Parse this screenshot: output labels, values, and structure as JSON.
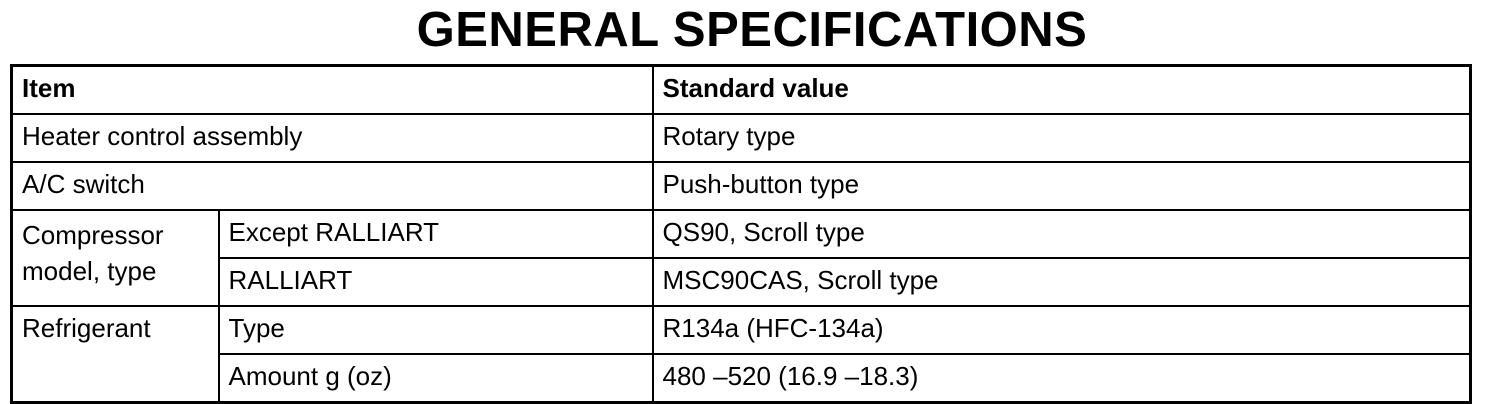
{
  "title": "GENERAL SPECIFICATIONS",
  "table": {
    "headers": [
      "Item",
      "Standard value"
    ],
    "heater": {
      "item": "Heater control assembly",
      "value": "Rotary type"
    },
    "ac_switch": {
      "item": "A/C switch",
      "value": "Push-button type"
    },
    "compressor": {
      "item": "Compressor model, type",
      "rows": [
        {
          "sub": "Except RALLIART",
          "value": "QS90, Scroll type"
        },
        {
          "sub": "RALLIART",
          "value": "MSC90CAS, Scroll type"
        }
      ]
    },
    "refrigerant": {
      "item": "Refrigerant",
      "rows": [
        {
          "sub": "Type",
          "value": "R134a (HFC-134a)"
        },
        {
          "sub": "Amount g (oz)",
          "value": "480 –520 (16.9 –18.3)"
        }
      ]
    }
  }
}
